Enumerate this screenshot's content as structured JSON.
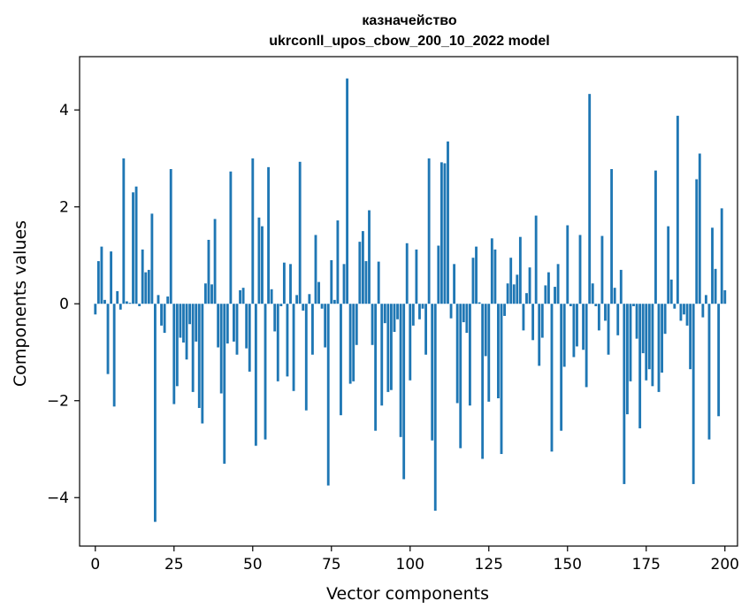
{
  "chart_data": {
    "type": "bar",
    "title_line1": "казначейство",
    "title_line2": "ukrconll_upos_cbow_200_10_2022 model",
    "xlabel": "Vector components",
    "ylabel": "Components values",
    "xlim": [
      -5,
      204
    ],
    "ylim": [
      -5,
      5.1
    ],
    "xticks": [
      0,
      25,
      50,
      75,
      100,
      125,
      150,
      175,
      200
    ],
    "xtick_labels": [
      "0",
      "25",
      "50",
      "75",
      "100",
      "125",
      "150",
      "175",
      "200"
    ],
    "yticks": [
      -4,
      -2,
      0,
      2,
      4
    ],
    "ytick_labels": [
      "−4",
      "−2",
      "0",
      "2",
      "4"
    ],
    "bar_color": "#1f77b4",
    "values": [
      -0.22,
      0.88,
      1.18,
      0.08,
      -1.45,
      1.08,
      -2.12,
      0.26,
      -0.12,
      3.0,
      0.05,
      0.02,
      2.3,
      2.42,
      -0.05,
      1.12,
      0.65,
      0.7,
      1.86,
      -4.5,
      0.18,
      -0.45,
      -0.6,
      0.15,
      2.78,
      -2.07,
      -1.7,
      -0.7,
      -0.8,
      -1.15,
      -0.42,
      -1.82,
      -0.78,
      -2.15,
      -2.47,
      0.42,
      1.32,
      0.4,
      1.75,
      -0.9,
      -1.85,
      -3.3,
      -0.82,
      2.73,
      -0.78,
      -1.05,
      0.28,
      0.33,
      -0.92,
      -1.4,
      3.0,
      -2.93,
      1.78,
      1.6,
      -2.8,
      2.82,
      0.3,
      -0.57,
      -1.6,
      -0.05,
      0.85,
      -1.5,
      0.82,
      -1.8,
      0.18,
      2.93,
      -0.14,
      -2.2,
      0.2,
      -1.05,
      1.42,
      0.45,
      -0.1,
      -0.9,
      -3.75,
      0.9,
      0.08,
      1.72,
      -2.3,
      0.82,
      4.65,
      -1.65,
      -1.6,
      -0.85,
      1.28,
      1.5,
      0.88,
      1.93,
      -0.85,
      -2.62,
      0.87,
      -2.1,
      -0.4,
      -1.82,
      -1.78,
      -0.58,
      -0.32,
      -2.75,
      -3.62,
      1.25,
      -1.58,
      -0.45,
      1.12,
      -0.32,
      -0.1,
      -1.05,
      3.0,
      -2.82,
      -4.27,
      1.2,
      2.92,
      2.9,
      3.35,
      -0.3,
      0.82,
      -2.05,
      -2.98,
      -0.38,
      -0.6,
      -2.1,
      0.95,
      1.18,
      0.03,
      -3.2,
      -1.08,
      -2.02,
      1.35,
      1.12,
      -1.95,
      -3.1,
      -0.25,
      0.42,
      0.95,
      0.4,
      0.6,
      1.38,
      -0.55,
      0.22,
      0.75,
      -0.75,
      1.82,
      -1.28,
      -0.7,
      0.38,
      0.65,
      -3.05,
      0.35,
      0.82,
      -2.62,
      -1.3,
      1.62,
      -0.05,
      -1.1,
      -0.88,
      1.42,
      -0.95,
      -1.72,
      4.33,
      0.42,
      -0.05,
      -0.55,
      1.4,
      -0.35,
      -1.05,
      2.78,
      0.33,
      -0.65,
      0.7,
      -3.72,
      -2.28,
      -1.6,
      -0.05,
      -0.72,
      -2.57,
      -1.02,
      -1.58,
      -1.35,
      -1.7,
      2.75,
      -1.82,
      -1.42,
      -0.62,
      1.6,
      0.5,
      -0.1,
      3.88,
      -0.35,
      -0.22,
      -0.45,
      -1.35,
      -3.72,
      2.57,
      3.1,
      -0.28,
      0.18,
      -2.8,
      1.57,
      0.72,
      -2.32,
      1.97,
      0.28
    ]
  }
}
